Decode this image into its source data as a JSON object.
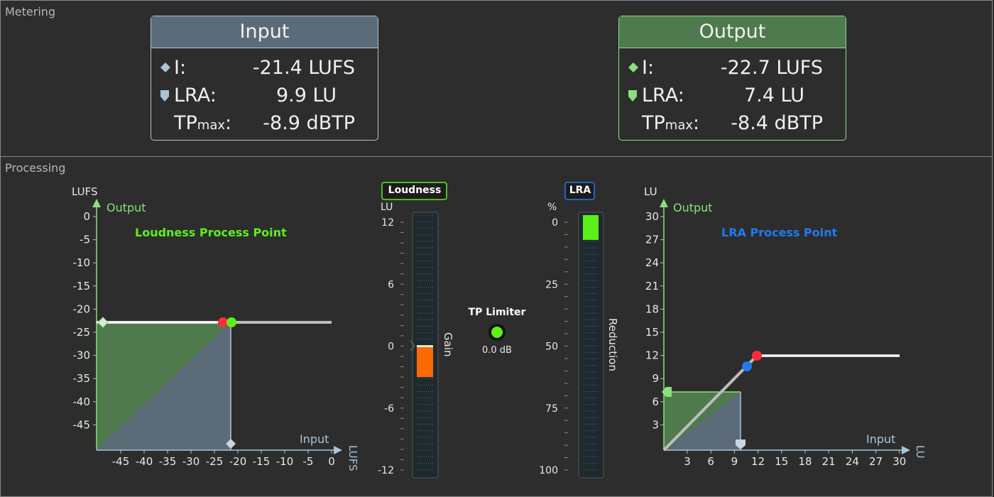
{
  "metering": {
    "title": "Metering",
    "input": {
      "title": "Input",
      "i_label": "I:",
      "i_value": "-21.4 LUFS",
      "lra_label": "LRA:",
      "lra_value": "9.9 LU",
      "tp_label": "TP",
      "tp_sub": "max",
      "tp_colon": ":",
      "tp_value": "-8.9 dBTP"
    },
    "output": {
      "title": "Output",
      "i_label": "I:",
      "i_value": "-22.7 LUFS",
      "lra_label": "LRA:",
      "lra_value": "7.4 LU",
      "tp_label": "TP",
      "tp_sub": "max",
      "tp_colon": ":",
      "tp_value": "-8.4 dBTP"
    }
  },
  "processing": {
    "title": "Processing",
    "loudness_chart": {
      "y_unit": "LUFS",
      "y_axis_label": "Output",
      "x_axis_label": "Input",
      "x_unit": "LUFS",
      "title": "Loudness Process Point",
      "y_ticks": [
        "0",
        "-5",
        "-10",
        "-15",
        "-20",
        "-25",
        "-30",
        "-35",
        "-40",
        "-45"
      ],
      "x_ticks": [
        "-45",
        "-40",
        "-35",
        "-30",
        "-25",
        "-20",
        "-15",
        "-10",
        "-5",
        "0"
      ]
    },
    "loudness_meter": {
      "badge": "Loudness",
      "unit": "LU",
      "ticks": [
        "12",
        "6",
        "0",
        "-6",
        "-12"
      ],
      "side_label": "Gain",
      "gain_value": -3.0
    },
    "tp_limiter": {
      "title": "TP Limiter",
      "value": "0.0 dB",
      "led_color": "#5cf01a"
    },
    "lra_meter": {
      "badge": "LRA",
      "unit": "%",
      "ticks": [
        "0",
        "25",
        "50",
        "75",
        "100"
      ],
      "side_label": "Reduction",
      "reduction_value": 2
    },
    "lra_chart": {
      "y_unit": "LU",
      "y_axis_label": "Output",
      "x_axis_label": "Input",
      "x_unit": "LU",
      "title": "LRA Process Point",
      "y_ticks": [
        "30",
        "27",
        "24",
        "21",
        "18",
        "15",
        "12",
        "9",
        "6",
        "3"
      ],
      "x_ticks": [
        "3",
        "6",
        "9",
        "12",
        "15",
        "18",
        "21",
        "24",
        "27",
        "30"
      ]
    }
  },
  "colors": {
    "input": "#a9c4d6",
    "output": "#8be07e",
    "loudness_title": "#5cf01a",
    "lra_title": "#1f7bf0",
    "red_point": "#ff2a3a",
    "green_point": "#5cf01a",
    "blue_point": "#1f7bf0",
    "gain_bar": "#ff6a00"
  }
}
